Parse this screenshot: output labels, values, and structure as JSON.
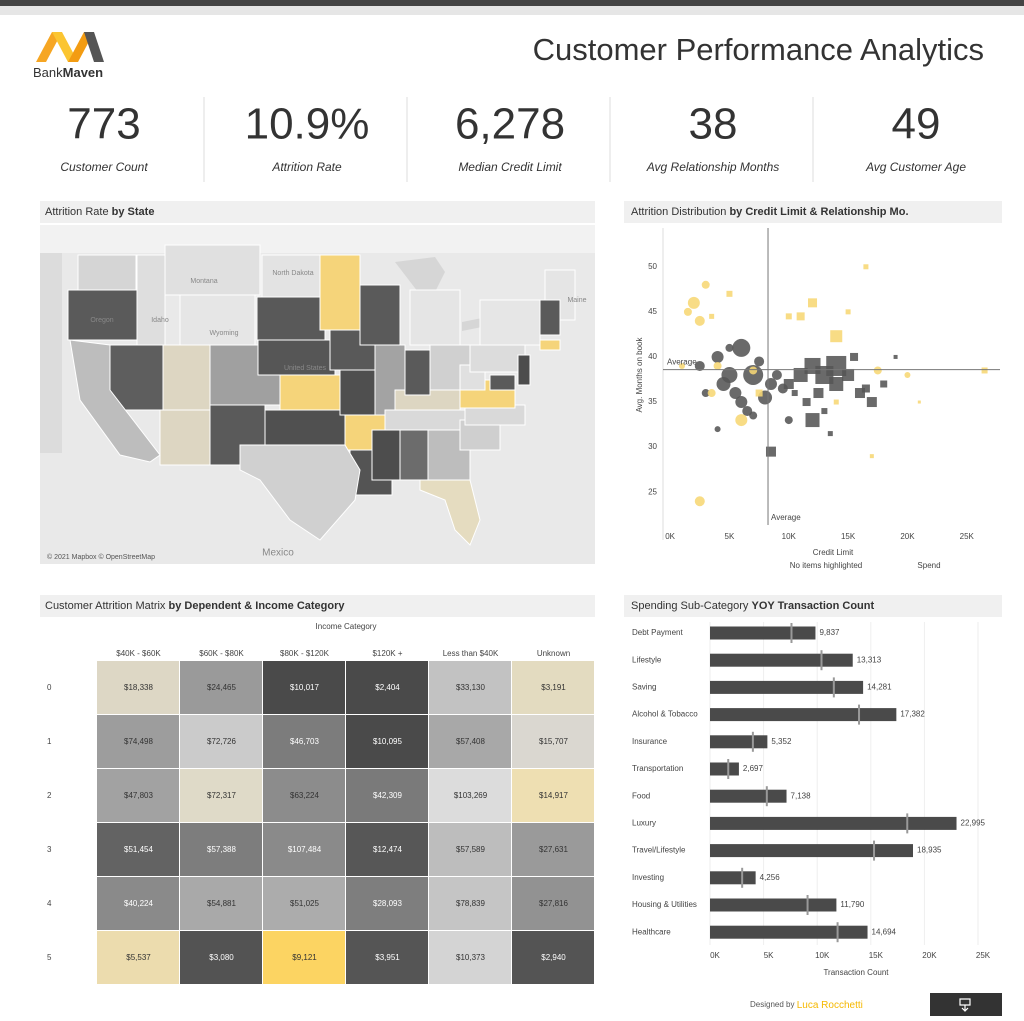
{
  "header": {
    "logo_prefix": "Bank",
    "logo_suffix": "Maven",
    "title": "Customer Performance Analytics"
  },
  "kpis": [
    {
      "value": "773",
      "label": "Customer Count"
    },
    {
      "value": "10.9%",
      "label": "Attrition Rate"
    },
    {
      "value": "6,278",
      "label": "Median Credit Limit"
    },
    {
      "value": "38",
      "label": "Avg Relationship Months"
    },
    {
      "value": "49",
      "label": "Avg Customer Age"
    }
  ],
  "map": {
    "title": "Attrition Rate",
    "title_emphasis": "by State",
    "labels": [
      "North Dakota",
      "Montana",
      "Wyoming",
      "Idaho",
      "Oregon",
      "United States",
      "Maine",
      "Mexico"
    ],
    "attribution": "© 2021 Mapbox © OpenStreetMap"
  },
  "chart_data": [
    {
      "type": "scatter",
      "title": "Attrition Distribution",
      "title_emphasis": "by Credit Limit & Relationship Mo.",
      "x_label": "Credit Limit",
      "y_label": "Avg. Months on book",
      "xlim": [
        -600,
        27800
      ],
      "ylim": [
        19.7,
        54.3
      ],
      "xticks": [
        {
          "value": 0,
          "label": "0K"
        },
        {
          "value": 5000,
          "label": "5K"
        },
        {
          "value": 10000,
          "label": "10K"
        },
        {
          "value": 15000,
          "label": "15K"
        },
        {
          "value": 20000,
          "label": "20K"
        },
        {
          "value": 25000,
          "label": "25K"
        }
      ],
      "yticks": [
        25,
        30,
        35,
        40,
        45,
        50
      ],
      "reference_lines": {
        "x": 8250,
        "y": 38.6,
        "label": "Average"
      },
      "notes": [
        "No items highlighted",
        "Spend"
      ],
      "series": [
        {
          "color": "#555555",
          "shape": "circle",
          "x": [
            2500,
            4000,
            5000,
            6000,
            5500,
            7000,
            8000,
            6500,
            4500,
            3000,
            8500,
            7500,
            9500,
            6000,
            10000,
            4000,
            7000,
            5000,
            9000
          ],
          "y": [
            39,
            40,
            38,
            41,
            36,
            38,
            35.5,
            34,
            37,
            36,
            37,
            39.5,
            36.5,
            35,
            33,
            32,
            33.5,
            41,
            38
          ],
          "sizes": [
            5,
            6,
            8,
            9,
            6,
            10,
            7,
            5,
            7,
            4,
            6,
            5,
            5,
            6,
            4,
            3,
            4,
            4,
            5
          ]
        },
        {
          "color": "#555555",
          "shape": "square",
          "x": [
            10000,
            11000,
            12000,
            13000,
            14000,
            12500,
            15000,
            16000,
            14000,
            11500,
            13000,
            17000,
            18000,
            12000,
            10500,
            15500,
            8500,
            13500,
            19000,
            16500
          ],
          "y": [
            37,
            38,
            39,
            38,
            37,
            36,
            38,
            36,
            39,
            35,
            34,
            35,
            37,
            33,
            36,
            40,
            29.5,
            31.5,
            40,
            36.5
          ],
          "sizes": [
            10,
            14,
            16,
            18,
            14,
            10,
            12,
            10,
            20,
            8,
            6,
            10,
            7,
            14,
            6,
            8,
            10,
            5,
            4,
            8
          ]
        },
        {
          "color": "#f7d774",
          "shape": "circle",
          "x": [
            1500,
            2000,
            2500,
            3000,
            2500,
            4000,
            1000,
            3500,
            6000,
            17500,
            20000,
            7000
          ],
          "y": [
            45,
            46,
            44,
            48,
            24,
            39,
            39,
            36,
            33,
            38.5,
            38,
            38.5
          ],
          "sizes": [
            4,
            6,
            5,
            4,
            5,
            4,
            3,
            4,
            6,
            4,
            3,
            4
          ]
        },
        {
          "color": "#f7d774",
          "shape": "square",
          "x": [
            5000,
            16500,
            11000,
            12000,
            10000,
            15000,
            14000,
            17000,
            21000,
            26500,
            3500,
            7500,
            14000
          ],
          "y": [
            47,
            50,
            44.5,
            46,
            44.5,
            45,
            35,
            29,
            35,
            38.5,
            44.5,
            36,
            42.3
          ],
          "sizes": [
            6,
            5,
            8,
            9,
            6,
            5,
            5,
            4,
            3,
            6,
            5,
            7,
            12
          ]
        }
      ]
    },
    {
      "type": "bar",
      "orientation": "horizontal",
      "title": "Spending Sub-Category",
      "title_emphasis": "YOY Transaction Count",
      "x_label": "Transaction Count",
      "categories": [
        "Debt Payment",
        "Lifestyle",
        "Saving",
        "Alcohol & Tobacco",
        "Insurance",
        "Transportation",
        "Food",
        "Luxury",
        "Travel/Lifestyle",
        "Investing",
        "Housing & Utilities",
        "Healthcare"
      ],
      "values": [
        9837,
        13313,
        14281,
        17382,
        5352,
        2697,
        7138,
        22995,
        18935,
        4256,
        11790,
        14694
      ],
      "value_labels": [
        "9,837",
        "13,313",
        "14,281",
        "17,382",
        "5,352",
        "2,697",
        "7,138",
        "22,995",
        "18,935",
        "4,256",
        "11,790",
        "14,694"
      ],
      "reference_values": [
        7600,
        10400,
        11550,
        13900,
        4000,
        1700,
        5300,
        18400,
        15300,
        3000,
        9100,
        11900
      ],
      "color": "#4a4a4a",
      "xlim": [
        0,
        27050
      ],
      "xticks": [
        {
          "value": 0,
          "label": "0K"
        },
        {
          "value": 5000,
          "label": "5K"
        },
        {
          "value": 10000,
          "label": "10K"
        },
        {
          "value": 15000,
          "label": "15K"
        },
        {
          "value": 20000,
          "label": "20K"
        },
        {
          "value": 25000,
          "label": "25K"
        }
      ],
      "grid": true
    }
  ],
  "matrix": {
    "title": "Customer Attrition Matrix",
    "title_emphasis": "by Dependent & Income Category",
    "column_title": "Income Category",
    "columns": [
      "$40K - $60K",
      "$60K - $80K",
      "$80K - $120K",
      "$120K +",
      "Less than $40K",
      "Unknown"
    ],
    "rows": [
      {
        "label": "0",
        "cells": [
          "$18,338",
          "$24,465",
          "$10,017",
          "$2,404",
          "$33,130",
          "$3,191"
        ]
      },
      {
        "label": "1",
        "cells": [
          "$74,498",
          "$72,726",
          "$46,703",
          "$10,095",
          "$57,408",
          "$15,707"
        ]
      },
      {
        "label": "2",
        "cells": [
          "$47,803",
          "$72,317",
          "$63,224",
          "$42,309",
          "$103,269",
          "$14,917"
        ]
      },
      {
        "label": "3",
        "cells": [
          "$51,454",
          "$57,388",
          "$107,484",
          "$12,474",
          "$57,589",
          "$27,631"
        ]
      },
      {
        "label": "4",
        "cells": [
          "$40,224",
          "$54,881",
          "$51,025",
          "$28,093",
          "$78,839",
          "$27,816"
        ]
      },
      {
        "label": "5",
        "cells": [
          "$5,537",
          "$3,080",
          "$9,121",
          "$3,951",
          "$10,373",
          "$2,940"
        ]
      }
    ],
    "cell_colors": [
      [
        "#ddd7c5",
        "#9a9a9a",
        "#4a4a4a",
        "#4a4a4a",
        "#c2c2c2",
        "#e3dbc0"
      ],
      [
        "#9d9d9d",
        "#cbcbcb",
        "#7c7c7c",
        "#4a4a4a",
        "#a8a8a8",
        "#dad7d0"
      ],
      [
        "#a2a2a2",
        "#dfdac8",
        "#8c8c8c",
        "#7a7a7a",
        "#dcdcdc",
        "#eedfb2"
      ],
      [
        "#636363",
        "#7d7d7d",
        "#8a8a8a",
        "#575757",
        "#bdbdbd",
        "#9a9a9a"
      ],
      [
        "#8a8a8a",
        "#a9a9a9",
        "#acacac",
        "#7e7e7e",
        "#c5c5c5",
        "#929292"
      ],
      [
        "#ecdcae",
        "#535353",
        "#fcd462",
        "#555555",
        "#d4d4d4",
        "#545454"
      ]
    ]
  },
  "footer": {
    "prefix": "Designed by",
    "author": "Luca Rocchetti"
  }
}
